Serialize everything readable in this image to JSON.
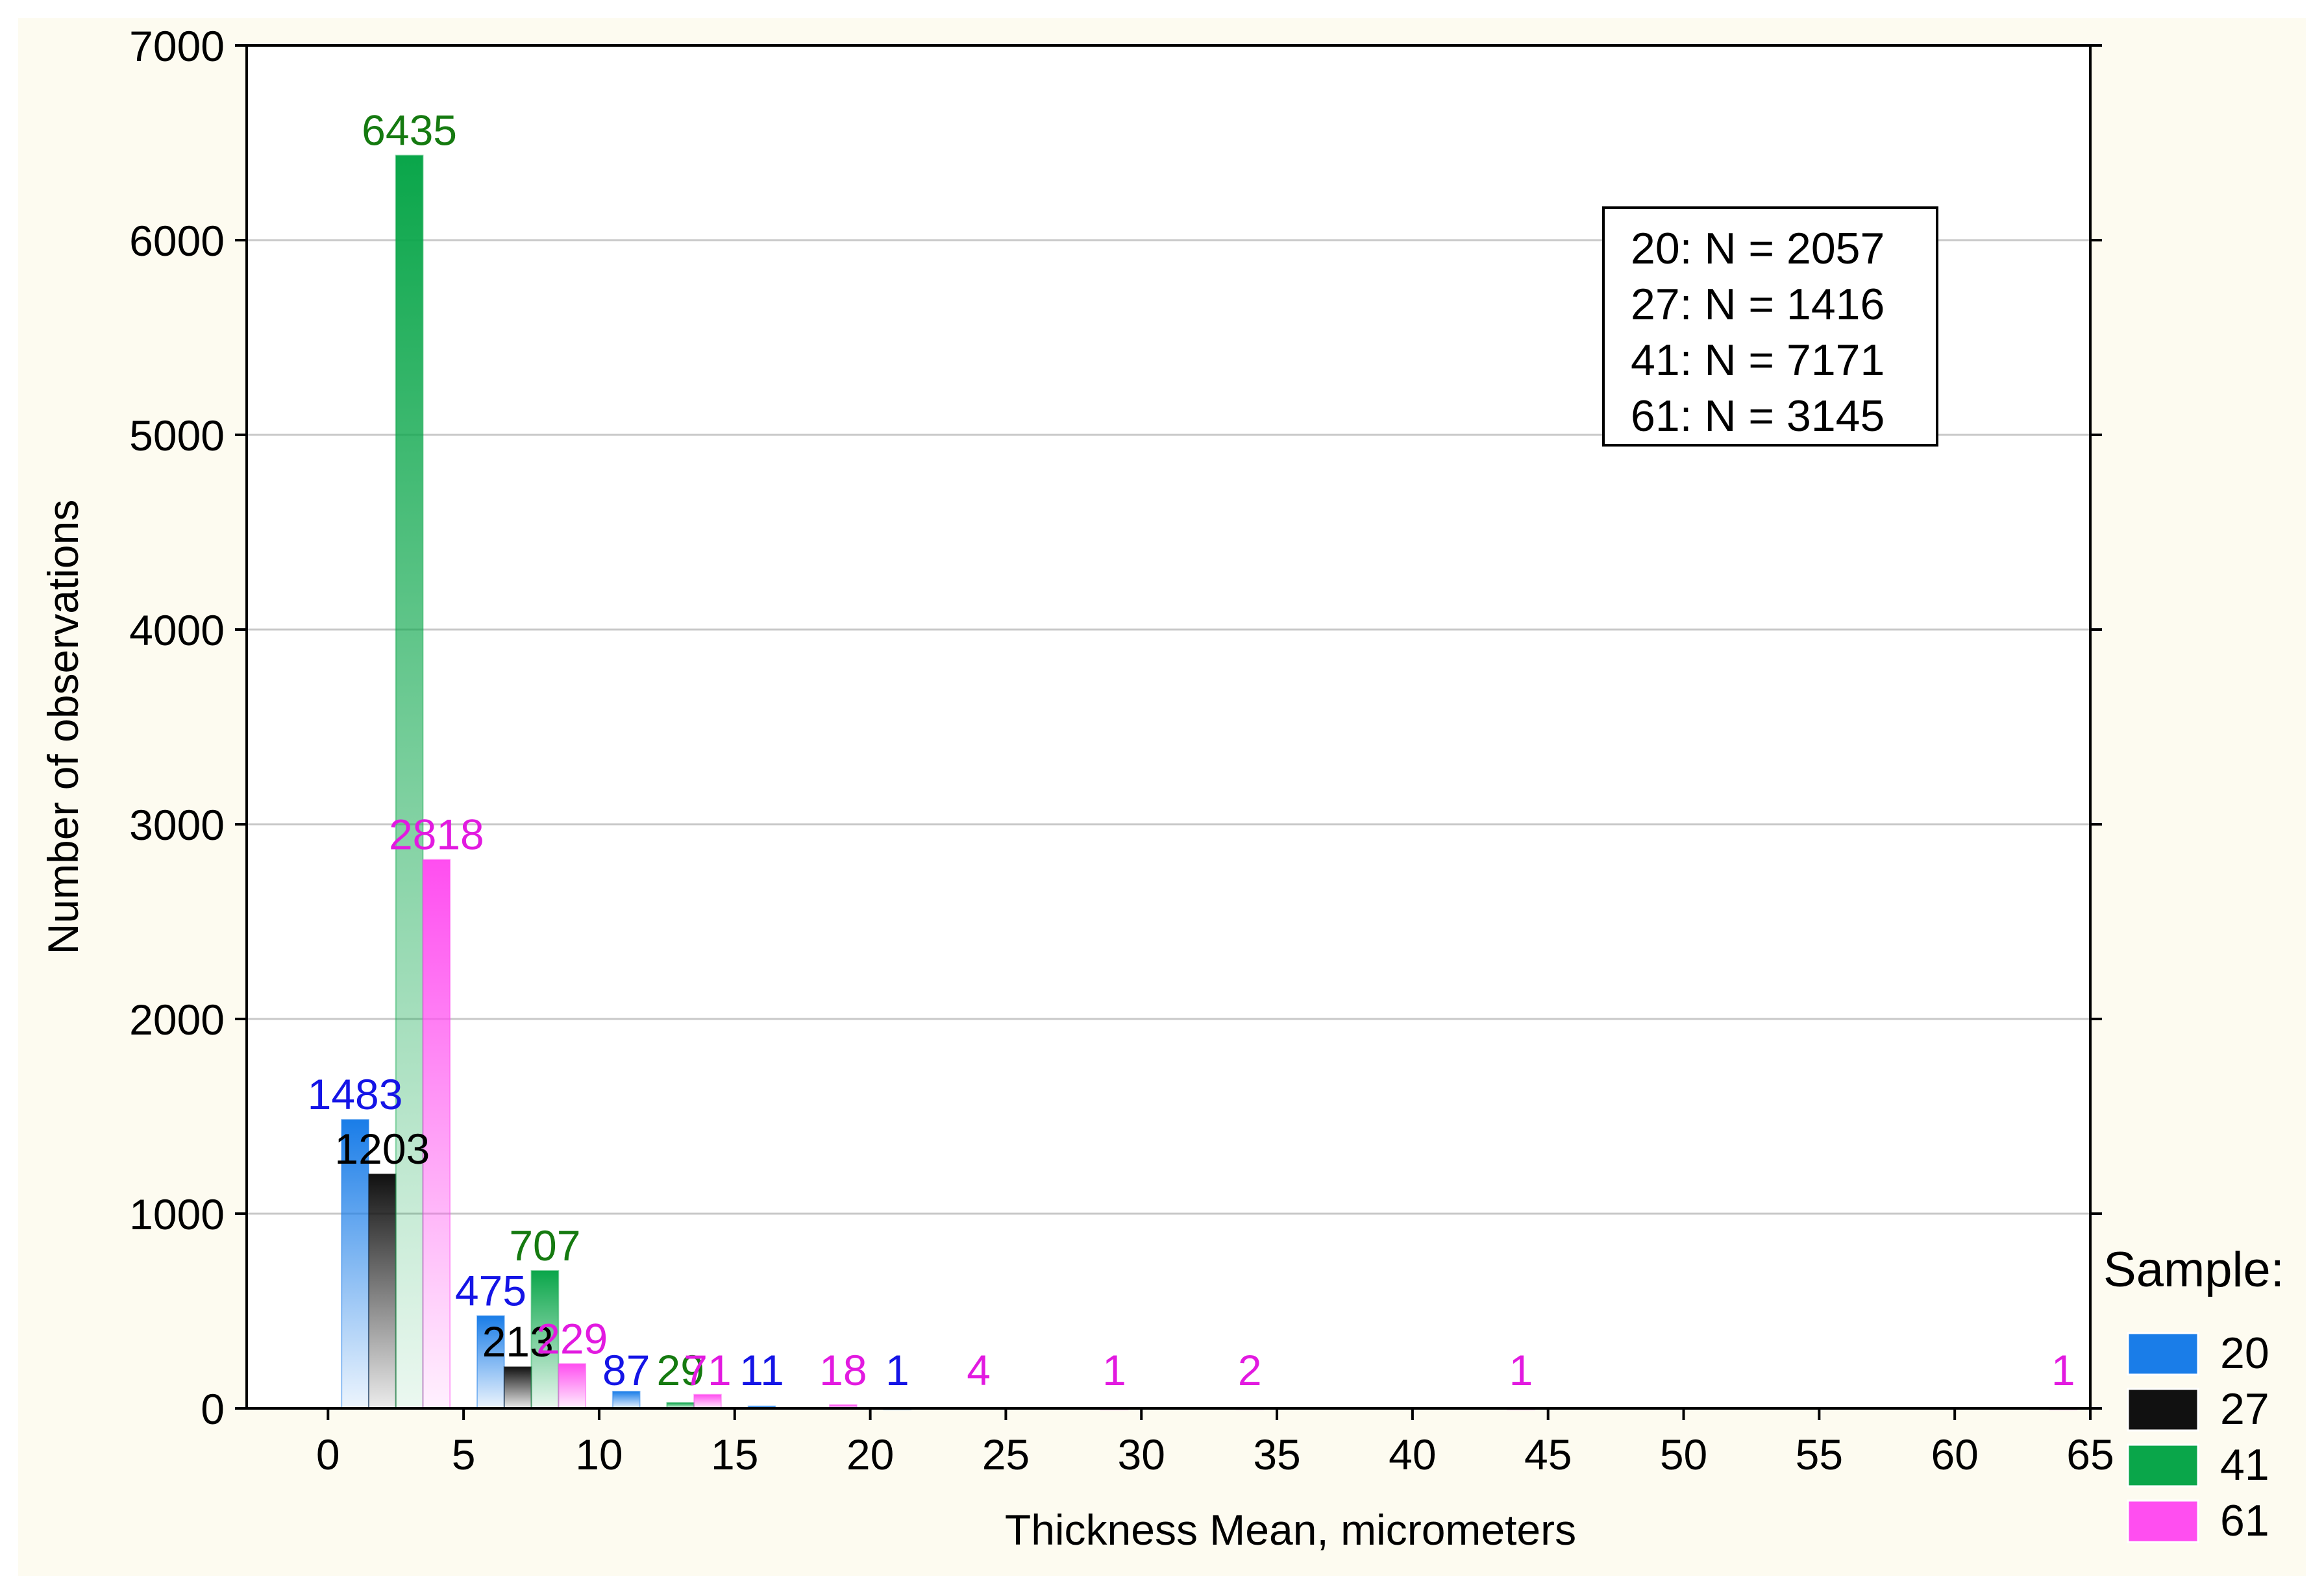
{
  "chart_data": {
    "type": "bar",
    "title": "",
    "xlabel": "Thickness Mean, micrometers",
    "ylabel": "Number of observations",
    "xlim": [
      -3,
      65
    ],
    "ylim": [
      0,
      7000
    ],
    "xticks": [
      "0",
      "5",
      "10",
      "15",
      "20",
      "25",
      "30",
      "35",
      "40",
      "45",
      "50",
      "55",
      "60",
      "65"
    ],
    "yticks": [
      "0",
      "1000",
      "2000",
      "3000",
      "4000",
      "5000",
      "6000",
      "7000"
    ],
    "grid": true,
    "bin_centers": [
      2.5,
      7.5,
      12.5,
      17.5,
      22.5,
      27.5,
      32.5,
      37.5,
      42.5,
      47.5,
      52.5,
      57.5,
      62.5
    ],
    "series": [
      {
        "name": "20",
        "color": "#1a7de8",
        "label_color": "#1414e6",
        "values": [
          1483,
          475,
          87,
          11,
          1,
          0,
          0,
          0,
          0,
          0,
          0,
          0,
          0
        ]
      },
      {
        "name": "27",
        "color": "#111111",
        "label_color": "#000000",
        "values": [
          1203,
          213,
          0,
          0,
          0,
          0,
          0,
          0,
          0,
          0,
          0,
          0,
          0
        ]
      },
      {
        "name": "41",
        "color": "#0aa64a",
        "label_color": "#157a10",
        "values": [
          6435,
          707,
          29,
          0,
          0,
          0,
          0,
          0,
          0,
          0,
          0,
          0,
          0
        ]
      },
      {
        "name": "61",
        "color": "#ff4ef0",
        "label_color": "#e21ae0",
        "values": [
          2818,
          229,
          71,
          18,
          4,
          1,
          2,
          0,
          1,
          0,
          0,
          0,
          1
        ]
      }
    ],
    "stats_box": [
      "20:  N = 2057",
      "27:  N = 1416",
      "41:  N = 7171",
      "61:  N = 3145"
    ],
    "legend_title": "Sample:",
    "legend_position": "right-bottom"
  }
}
